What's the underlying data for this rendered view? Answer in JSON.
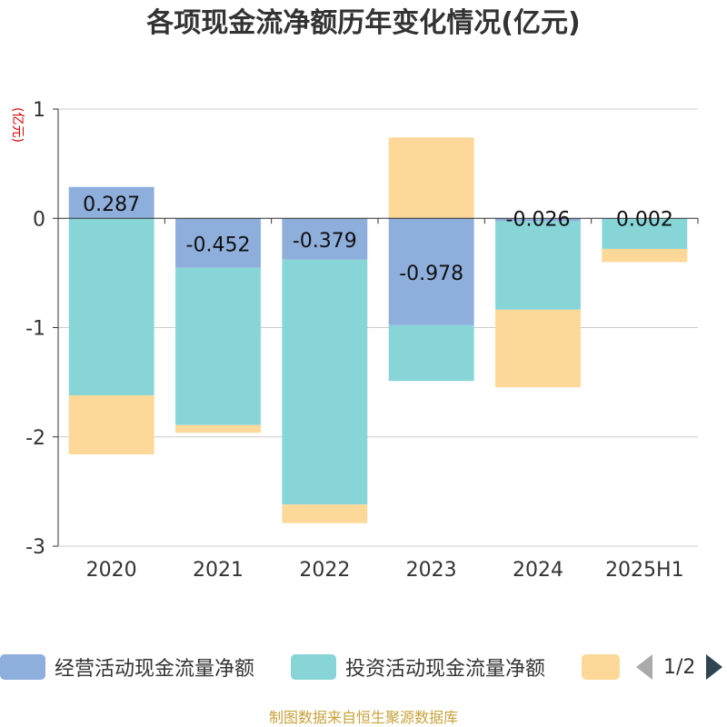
{
  "chart_data": {
    "type": "bar",
    "stacked": true,
    "title": "各项现金流净额历年变化情况(亿元)",
    "ylabel": "(亿元)",
    "categories": [
      "2020",
      "2021",
      "2022",
      "2023",
      "2024",
      "2025H1"
    ],
    "ylim": [
      -3,
      1
    ],
    "yticks": [
      1,
      0,
      -1,
      -2,
      -3
    ],
    "grid": true,
    "legend_position": "bottom",
    "series": [
      {
        "name": "经营活动现金流量净额",
        "color": "#8eaedc",
        "values": [
          0.287,
          -0.452,
          -0.379,
          -0.978,
          -0.026,
          0.002
        ],
        "labels": [
          "0.287",
          "-0.452",
          "-0.379",
          "-0.978",
          "-0.026",
          "0.002"
        ]
      },
      {
        "name": "投资活动现金流量净额",
        "color": "#88d5d8",
        "values": [
          -1.62,
          -1.44,
          -2.24,
          -0.51,
          -0.81,
          -0.28
        ]
      },
      {
        "name": "",
        "color": "#fed898",
        "values": [
          -0.54,
          -0.07,
          -0.17,
          0.74,
          -0.71,
          -0.12
        ]
      }
    ]
  },
  "legend": {
    "pager": "1/2"
  },
  "source": "制图数据来自恒生聚源数据库"
}
